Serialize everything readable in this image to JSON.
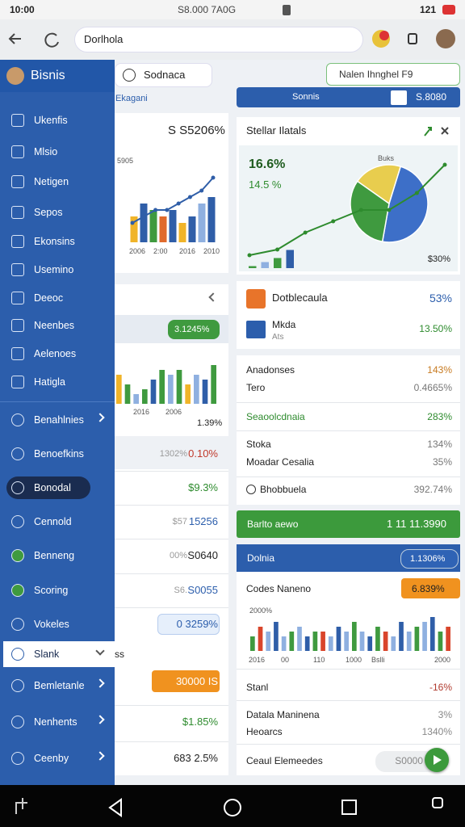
{
  "status_bar": {
    "time": "10:00",
    "network": "S8.000 7A0G",
    "battery": "121"
  },
  "browser": {
    "url": "Dorlhola"
  },
  "sidebar": {
    "title": "Bisnis",
    "items": [
      "Ukenfis",
      "Mlsio",
      "Netigen",
      "Sepos",
      "Ekonsins",
      "Usemino",
      "Deeoc",
      "Neenbes",
      "Aelenoes",
      "Hatigla",
      "Benahlnies",
      "Benoefkins",
      "Bonodal",
      "Cennold",
      "Benneng",
      "Scoring",
      "Vokeles",
      "Slank",
      "Bemletanle",
      "Nenhents",
      "Ceenby"
    ]
  },
  "toolbar": {
    "button": "Sodnaca",
    "dropdown": "Nalen Ihnghel F9",
    "link": "Ekagani",
    "tab": "Sonnis",
    "tab_value": "S.8080"
  },
  "growth_card": {
    "value": "S S5206%",
    "y_label": "5905",
    "x_labels": [
      "2006",
      "2:00",
      "2016",
      "2010"
    ],
    "bars": [
      4,
      6,
      5,
      4,
      5,
      3,
      4,
      6,
      7
    ],
    "trend": [
      3,
      4,
      5,
      5,
      6,
      7,
      8,
      10
    ],
    "ylim": [
      0,
      11
    ],
    "colors": [
      "#f0b429",
      "#2f5ea8",
      "#3f9a3f",
      "#e06a2c",
      "#2f5ea8",
      "#f0b429",
      "#2f5ea8",
      "#8fb0e0",
      "#2f5ea8"
    ]
  },
  "activity_card": {
    "badge": "3.1245%",
    "x_labels": [
      "2016",
      "2006"
    ],
    "note": "1.39%",
    "bars": [
      6,
      4,
      2,
      3,
      5,
      7,
      6,
      7,
      4,
      6,
      5,
      8
    ],
    "ylim": [
      0,
      10
    ],
    "colors": [
      "#f0b429",
      "#3f9a3f",
      "#8fb0e0",
      "#3f9a3f",
      "#2f5ea8",
      "#3f9a3f",
      "#8fb0e0",
      "#3f9a3f",
      "#f0b429",
      "#8fb0e0",
      "#2f5ea8",
      "#3f9a3f"
    ]
  },
  "left_rows": [
    {
      "muted": "1302%",
      "value": "0.10%"
    },
    {
      "value": "$9.3%"
    },
    {
      "muted": "$57",
      "value": "15256"
    },
    {
      "muted": "00%",
      "value": "S0640"
    },
    {
      "muted": "S6.",
      "value": "S0055"
    },
    {
      "value": "0 3259%"
    },
    {
      "value": "ss"
    },
    {
      "value": "30000 IS"
    },
    {
      "value": "$1.85%"
    },
    {
      "value": "683 2.5%"
    }
  ],
  "stellar_card": {
    "title": "Stellar Ilatals",
    "primary": "16.6%",
    "secondary": "14.5 %",
    "pie_label": "Buks",
    "footer": "$30%",
    "pie": [
      {
        "value": 48,
        "color": "#3d6fc8"
      },
      {
        "value": 32,
        "color": "#3f9a3f"
      },
      {
        "value": 20,
        "color": "#e8cd4e"
      }
    ],
    "bars": [
      1,
      3,
      5,
      9
    ],
    "trend": [
      2,
      3,
      6,
      8,
      10,
      10,
      13,
      18
    ],
    "ylim": [
      0,
      20
    ],
    "colors": [
      "#3f9a3f",
      "#8fb0e0",
      "#3f9a3f",
      "#2f5ea8"
    ]
  },
  "double_card": {
    "rows": [
      {
        "label": "Dotblecaula",
        "value": "53%"
      },
      {
        "label": "Mkda",
        "sub": "Ats",
        "value": "13.50%"
      }
    ]
  },
  "list_card": {
    "rows": [
      {
        "label": "Anadonses",
        "value": "143%"
      },
      {
        "label": "Tero",
        "value": "0.4665%"
      },
      {
        "label": "Seaoolcdnaia",
        "value": "283%"
      },
      {
        "label": "Stoka",
        "value": "134%"
      },
      {
        "label": "Moadar Cesalia",
        "value": "35%"
      },
      {
        "label": "Bhobbuela",
        "value": "392.74%"
      }
    ]
  },
  "banner": {
    "label": "Barlto aewo",
    "value": "1 11 11.3990"
  },
  "report_card": {
    "title": "Dolnia",
    "badge": "1.1306%",
    "subtitle": "Codes Naneno",
    "sub_badge": "6.839%",
    "y_label": "2000%",
    "bars": [
      3,
      5,
      4,
      6,
      3,
      4,
      5,
      3,
      4,
      4,
      3,
      5,
      4,
      6,
      4,
      3,
      5,
      4,
      3,
      6,
      4,
      5,
      6,
      7,
      4,
      5
    ],
    "ylim": [
      0,
      8
    ],
    "colors": [
      "#3f9a3f",
      "#d9452b",
      "#8fb0e0",
      "#2f5ea8",
      "#8fb0e0",
      "#3f9a3f",
      "#8fb0e0",
      "#2f5ea8"
    ],
    "x_labels": [
      "2016",
      "00",
      "110",
      "1000",
      "Bslli",
      "2000"
    ],
    "rows": [
      {
        "label": "Stanl",
        "value": "-16%"
      },
      {
        "label": "Datala Maninena",
        "value": "3%"
      },
      {
        "label": "Heoarcs",
        "value": "1340%"
      },
      {
        "label": "Ceaul Elemeedes",
        "value": "S0000"
      }
    ]
  }
}
